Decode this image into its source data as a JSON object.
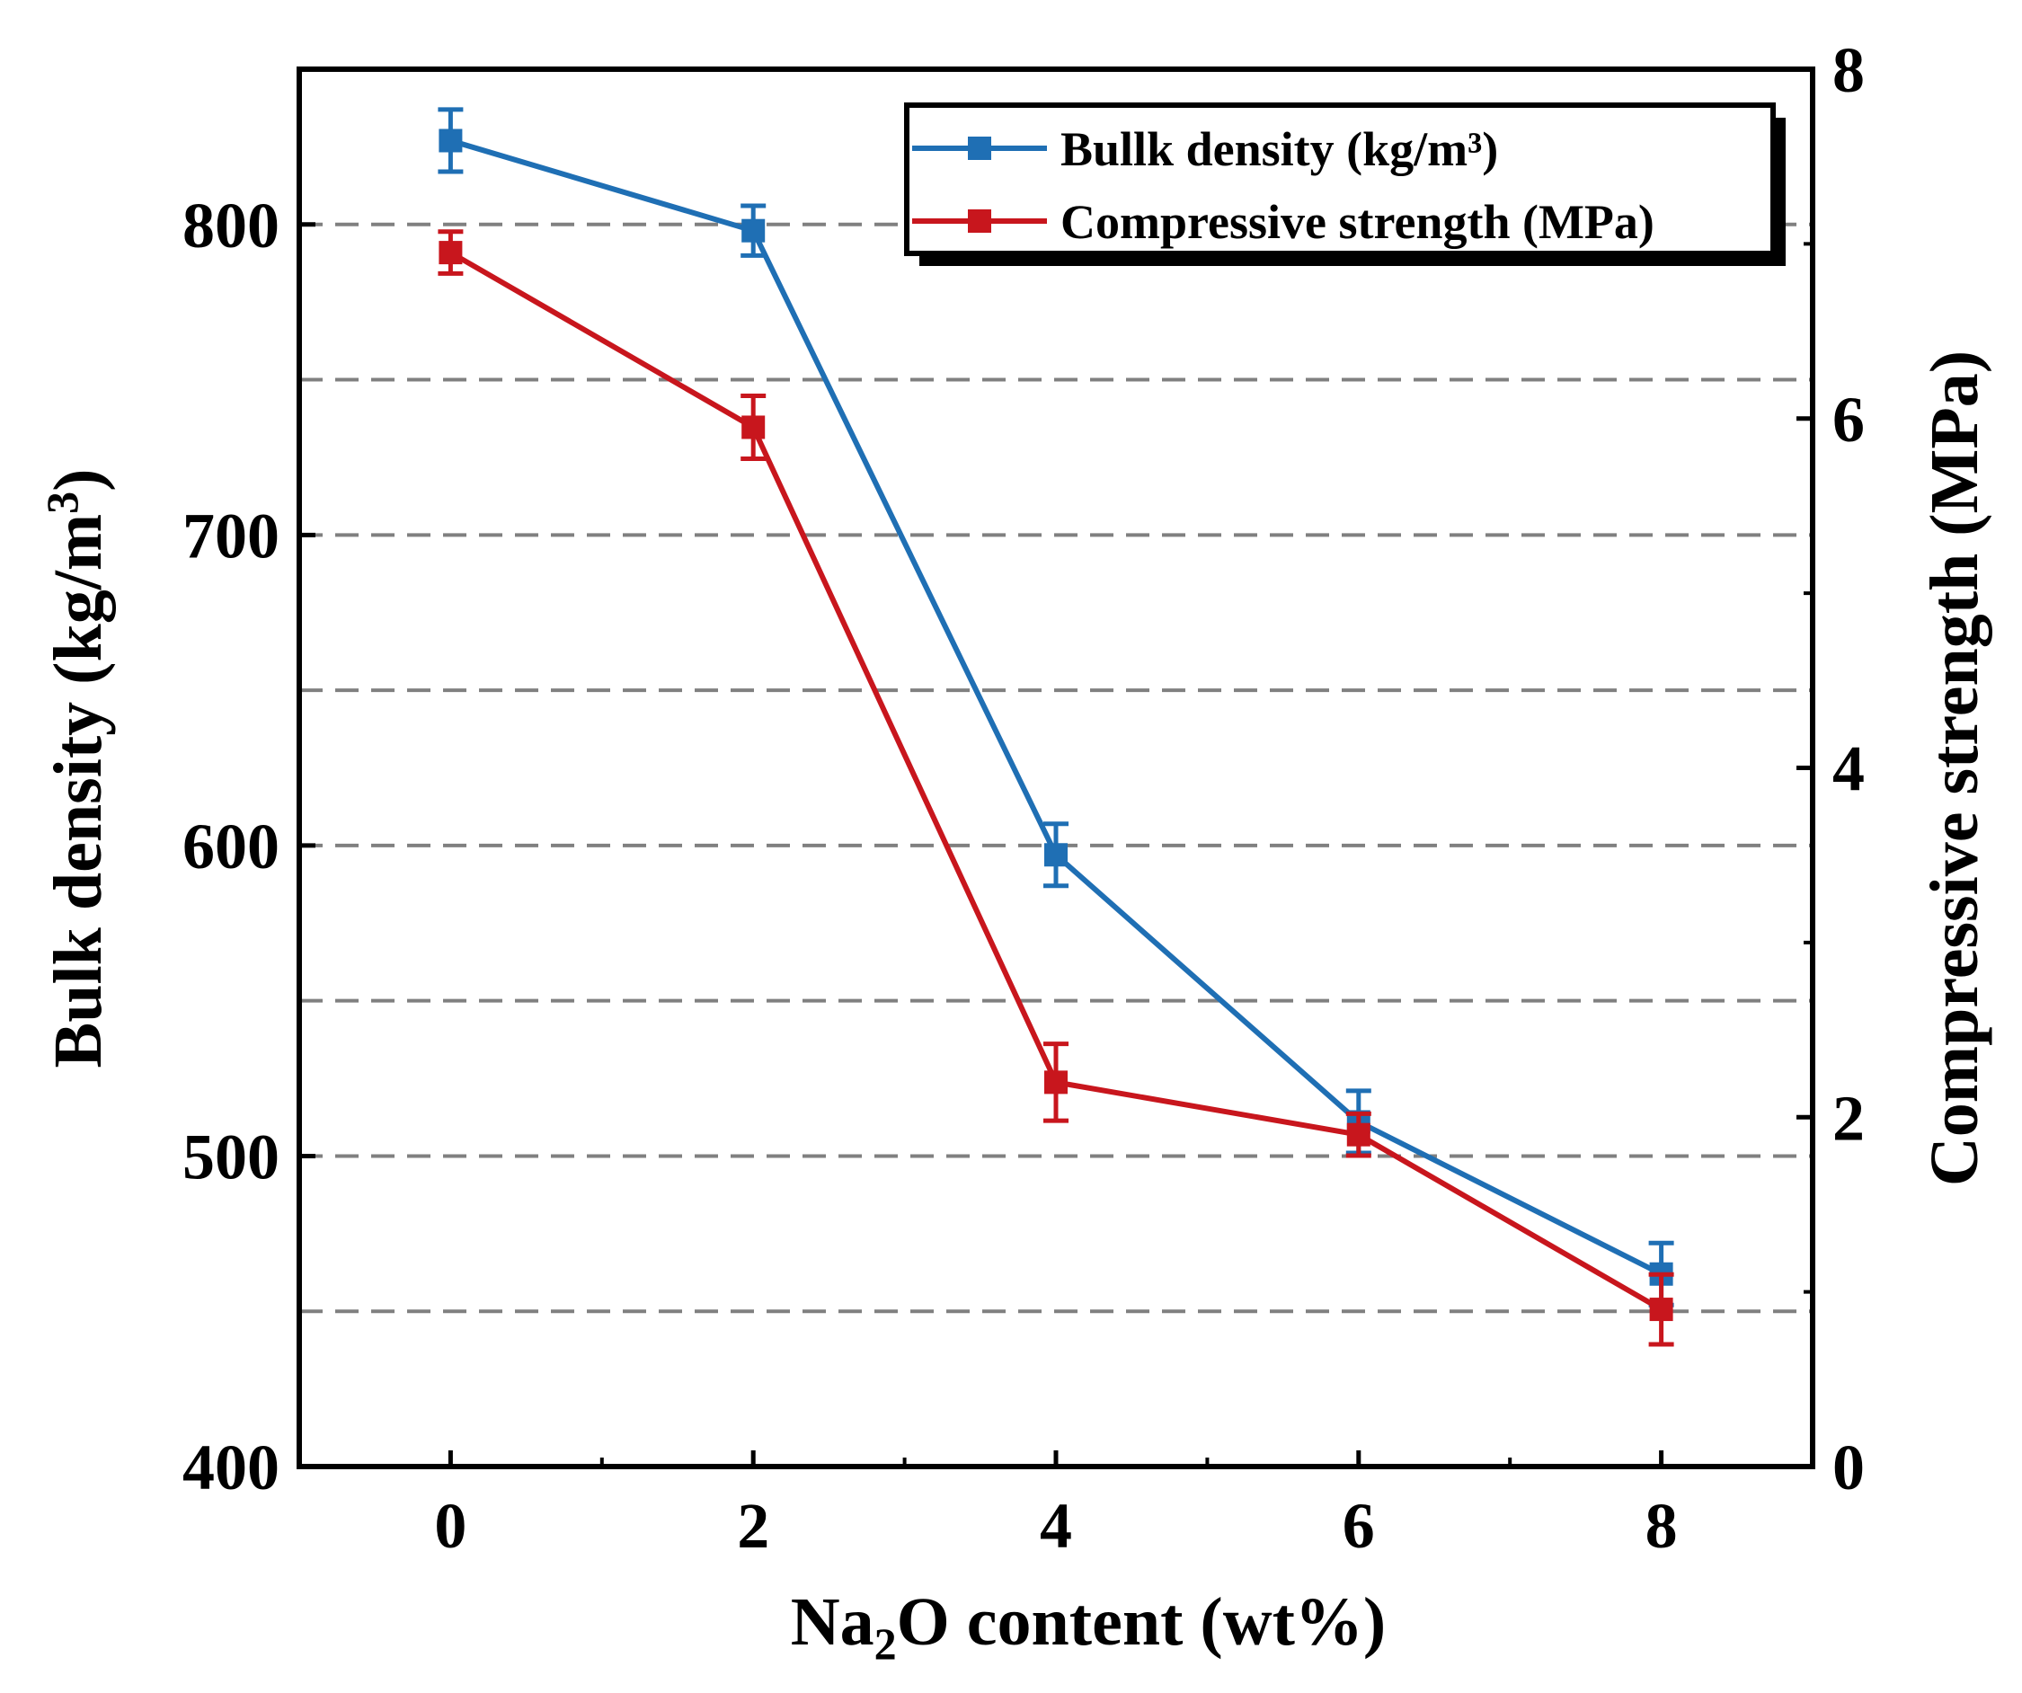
{
  "chart_data": {
    "type": "line",
    "title": "",
    "x": [
      0,
      2,
      4,
      6,
      8
    ],
    "xlabel": {
      "main": "Na",
      "sub": "2",
      "rest": "O content (wt%)"
    },
    "xlim": [
      -1,
      9
    ],
    "xticks": [
      "0",
      "2",
      "4",
      "6",
      "8"
    ],
    "ylabel_left": {
      "main": "Bulk density (kg/m",
      "sup": "3",
      "rest": ")"
    },
    "ylim_left": [
      400,
      850
    ],
    "yticks_left": [
      "400",
      "500",
      "600",
      "700",
      "800"
    ],
    "ylabel_right": "Compressive strength (MPa)",
    "ylim_right": [
      0,
      8
    ],
    "yticks_right": [
      "0",
      "2",
      "4",
      "6",
      "8"
    ],
    "gridlines_left": [
      450,
      500,
      550,
      600,
      650,
      700,
      750,
      800
    ],
    "legend_position": "top-right",
    "series": [
      {
        "name": "Bullk density (kg/m³)",
        "axis": "left",
        "color": "#1f6fb4",
        "values": [
          827,
          798,
          597,
          511,
          462
        ],
        "errors": [
          10,
          8,
          10,
          10,
          10
        ]
      },
      {
        "name": "Compressive strength (MPa)",
        "axis": "right",
        "color": "#c8161d",
        "values": [
          6.95,
          5.95,
          2.2,
          1.9,
          0.9
        ],
        "errors": [
          0.12,
          0.18,
          0.22,
          0.12,
          0.2
        ]
      }
    ]
  }
}
